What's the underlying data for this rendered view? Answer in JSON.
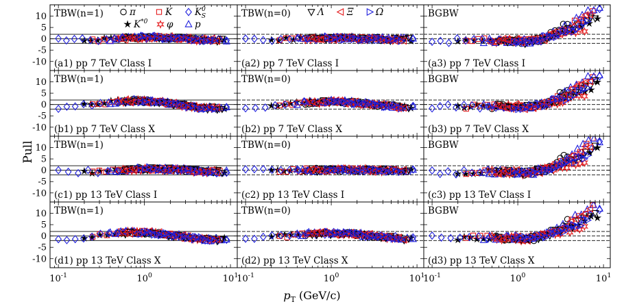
{
  "chart_data": {
    "type": "scatter",
    "x_scale": "log",
    "xlim": [
      0.08,
      12
    ],
    "ylim": [
      -14,
      15
    ],
    "ylabel": "Pull",
    "xlabel_main": "p",
    "xlabel_sub": "T",
    "xlabel_unit": " (GeV/c)",
    "x_tick_labels": [
      {
        "base": "10",
        "exp": "-1",
        "value": 0.1
      },
      {
        "base": "10",
        "exp": "0",
        "value": 1
      },
      {
        "base": "10",
        "exp": "1",
        "value": 10
      }
    ],
    "y_tick_labels": [
      "10",
      "5",
      "0",
      "-5",
      "-10"
    ],
    "y_tick_values": [
      10,
      5,
      0,
      -5,
      -10
    ],
    "column_models": [
      "TBW(n=1)",
      "TBW(n=0)",
      "BGBW"
    ],
    "row_datasets": [
      "pp 7 TeV Class I",
      "pp 7 TeV Class X",
      "pp 13 TeV Class I",
      "pp 13 TeV Class X"
    ],
    "panel_labels": [
      [
        "(a1) pp 7 TeV Class I",
        "(a2) pp 7 TeV Class I",
        "(a3) pp 7 TeV Class I"
      ],
      [
        "(b1) pp 7 TeV Class X",
        "(b2) pp 7 TeV Class X",
        "(b3) pp 7 TeV Class X"
      ],
      [
        "(c1) pp 13 TeV Class I",
        "(c2) pp 13 TeV Class I",
        "(c3) pp 13 TeV Class I"
      ],
      [
        "(d1) pp 13 TeV Class X",
        "(d2) pp 13 TeV Class X",
        "(d3) pp 13 TeV Class X"
      ]
    ],
    "reference_lines": {
      "solid": [
        -2,
        0,
        2
      ],
      "dashed": [
        -2,
        0,
        2
      ]
    },
    "legend": [
      {
        "symbol": "circle",
        "label": "π",
        "color": "#000000"
      },
      {
        "symbol": "square",
        "label": "K",
        "color": "#e41a1c"
      },
      {
        "symbol": "diamond",
        "label": "K",
        "sup": "0",
        "sub": "S",
        "color": "#1f1fdd"
      },
      {
        "symbol": "star5",
        "label": "K",
        "sup": "*0",
        "color": "#000000"
      },
      {
        "symbol": "star6",
        "label": "φ",
        "color": "#e41a1c"
      },
      {
        "symbol": "triangle-up",
        "label": "p",
        "color": "#1f1fdd"
      },
      {
        "symbol": "triangle-down",
        "label": "Λ",
        "color": "#000000"
      },
      {
        "symbol": "triangle-left",
        "label": "Ξ",
        "color": "#e41a1c"
      },
      {
        "symbol": "triangle-right",
        "label": "Ω",
        "color": "#1f1fdd"
      }
    ],
    "colors": {
      "black": "#000000",
      "red": "#e41a1c",
      "blue": "#1f1fdd"
    },
    "series_ranges": [
      {
        "name": "π",
        "symbol": "circle",
        "color": "#000000",
        "x_min": 0.5,
        "x_max": 3.8
      },
      {
        "name": "K*0",
        "symbol": "star5",
        "color": "#000000",
        "x_min": 0.2,
        "x_max": 8.5
      },
      {
        "name": "K",
        "symbol": "square",
        "color": "#e41a1c",
        "x_min": 0.25,
        "x_max": 7.5
      },
      {
        "name": "φ",
        "symbol": "star6",
        "color": "#e41a1c",
        "x_min": 0.5,
        "x_max": 6.0
      },
      {
        "name": "K0S",
        "symbol": "diamond",
        "color": "#1f1fdd",
        "x_min": 0.1,
        "x_max": 9.0
      },
      {
        "name": "p",
        "symbol": "triangle-up",
        "color": "#1f1fdd",
        "x_min": 0.4,
        "x_max": 9.0
      },
      {
        "name": "Λ",
        "symbol": "triangle-down",
        "color": "#000000",
        "x_min": 0.6,
        "x_max": 8.0
      },
      {
        "name": "Ξ",
        "symbol": "triangle-left",
        "color": "#e41a1c",
        "x_min": 0.6,
        "x_max": 7.0
      },
      {
        "name": "Ω",
        "symbol": "triangle-right",
        "color": "#1f1fdd",
        "x_min": 0.9,
        "x_max": 6.5
      }
    ]
  }
}
